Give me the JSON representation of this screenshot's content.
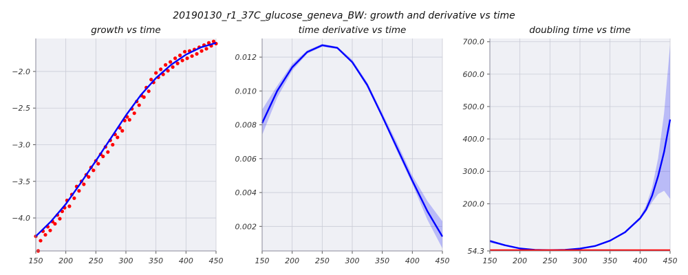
{
  "figure": {
    "suptitle": "20190130_r1_37C_glucose_geneva_BW: growth and derivative vs time",
    "background": "#ffffff",
    "panel_background": "#eff0f5",
    "grid_color": "#c9cbd6"
  },
  "chart_data": [
    {
      "type": "scatter",
      "title": "growth vs time",
      "xlabel": "",
      "ylabel": "",
      "xlim": [
        150,
        450
      ],
      "ylim": [
        -4.45,
        -1.55
      ],
      "xticks": [
        150,
        200,
        250,
        300,
        350,
        400,
        450
      ],
      "yticks": [
        -4.0,
        -3.5,
        -3.0,
        -2.5,
        -2.0
      ],
      "xtick_labels": [
        "150",
        "200",
        "250",
        "300",
        "350",
        "400",
        "450"
      ],
      "ytick_labels": [
        "−4.0",
        "−3.5",
        "−3.0",
        "−2.5",
        "−2.0"
      ],
      "grid": true,
      "series": [
        {
          "kind": "scatter",
          "color": "#ff0000",
          "points": [
            [
              150,
              -4.25
            ],
            [
              154,
              -4.45
            ],
            [
              158,
              -4.31
            ],
            [
              162,
              -4.18
            ],
            [
              166,
              -4.23
            ],
            [
              170,
              -4.12
            ],
            [
              174,
              -4.17
            ],
            [
              178,
              -4.05
            ],
            [
              182,
              -4.08
            ],
            [
              186,
              -3.96
            ],
            [
              190,
              -4.01
            ],
            [
              194,
              -3.91
            ],
            [
              198,
              -3.86
            ],
            [
              202,
              -3.76
            ],
            [
              206,
              -3.84
            ],
            [
              210,
              -3.68
            ],
            [
              214,
              -3.73
            ],
            [
              218,
              -3.57
            ],
            [
              222,
              -3.63
            ],
            [
              226,
              -3.5
            ],
            [
              230,
              -3.54
            ],
            [
              234,
              -3.41
            ],
            [
              238,
              -3.44
            ],
            [
              242,
              -3.31
            ],
            [
              246,
              -3.35
            ],
            [
              250,
              -3.22
            ],
            [
              254,
              -3.26
            ],
            [
              258,
              -3.13
            ],
            [
              262,
              -3.16
            ],
            [
              266,
              -3.03
            ],
            [
              270,
              -3.1
            ],
            [
              274,
              -2.94
            ],
            [
              278,
              -3.0
            ],
            [
              282,
              -2.86
            ],
            [
              286,
              -2.9
            ],
            [
              290,
              -2.77
            ],
            [
              294,
              -2.81
            ],
            [
              298,
              -2.67
            ],
            [
              302,
              -2.62
            ],
            [
              306,
              -2.66
            ],
            [
              310,
              -2.51
            ],
            [
              314,
              -2.57
            ],
            [
              318,
              -2.41
            ],
            [
              322,
              -2.46
            ],
            [
              326,
              -2.33
            ],
            [
              330,
              -2.35
            ],
            [
              334,
              -2.22
            ],
            [
              338,
              -2.27
            ],
            [
              342,
              -2.11
            ],
            [
              346,
              -2.15
            ],
            [
              350,
              -2.02
            ],
            [
              354,
              -2.08
            ],
            [
              358,
              -1.97
            ],
            [
              362,
              -2.04
            ],
            [
              366,
              -1.91
            ],
            [
              370,
              -1.99
            ],
            [
              374,
              -1.87
            ],
            [
              378,
              -1.94
            ],
            [
              382,
              -1.82
            ],
            [
              386,
              -1.89
            ],
            [
              390,
              -1.78
            ],
            [
              394,
              -1.85
            ],
            [
              398,
              -1.73
            ],
            [
              402,
              -1.82
            ],
            [
              406,
              -1.72
            ],
            [
              410,
              -1.79
            ],
            [
              414,
              -1.7
            ],
            [
              418,
              -1.76
            ],
            [
              422,
              -1.67
            ],
            [
              426,
              -1.72
            ],
            [
              430,
              -1.64
            ],
            [
              434,
              -1.69
            ],
            [
              438,
              -1.61
            ],
            [
              442,
              -1.65
            ],
            [
              446,
              -1.59
            ],
            [
              450,
              -1.62
            ]
          ]
        },
        {
          "kind": "line",
          "color": "#0000ff",
          "points": [
            [
              150,
              -4.25
            ],
            [
              175,
              -4.05
            ],
            [
              200,
              -3.81
            ],
            [
              225,
              -3.52
            ],
            [
              250,
              -3.22
            ],
            [
              275,
              -2.91
            ],
            [
              300,
              -2.6
            ],
            [
              325,
              -2.32
            ],
            [
              350,
              -2.09
            ],
            [
              375,
              -1.91
            ],
            [
              400,
              -1.77
            ],
            [
              425,
              -1.67
            ],
            [
              450,
              -1.61
            ]
          ]
        }
      ]
    },
    {
      "type": "line",
      "title": "time derivative vs time",
      "xlabel": "",
      "ylabel": "",
      "xlim": [
        150,
        450
      ],
      "ylim": [
        0.00055,
        0.0131
      ],
      "xticks": [
        150,
        200,
        250,
        300,
        350,
        400,
        450
      ],
      "yticks": [
        0.002,
        0.004,
        0.006,
        0.008,
        0.01,
        0.012
      ],
      "xtick_labels": [
        "150",
        "200",
        "250",
        "300",
        "350",
        "400",
        "450"
      ],
      "ytick_labels": [
        "0.002",
        "0.004",
        "0.006",
        "0.008",
        "0.010",
        "0.012"
      ],
      "grid": true,
      "series": [
        {
          "kind": "band",
          "color": "#0000ff",
          "opacity": 0.22,
          "x": [
            150,
            175,
            200,
            225,
            250,
            275,
            300,
            325,
            350,
            375,
            400,
            425,
            450
          ],
          "upper": [
            0.0089,
            0.0103,
            0.0116,
            0.0124,
            0.01278,
            0.01262,
            0.01185,
            0.0105,
            0.0087,
            0.0069,
            0.005,
            0.0035,
            0.0023
          ],
          "lower": [
            0.0074,
            0.0096,
            0.0112,
            0.0122,
            0.01262,
            0.01248,
            0.01165,
            0.0102,
            0.0084,
            0.0064,
            0.0045,
            0.0024,
            0.0007
          ]
        },
        {
          "kind": "line",
          "color": "#0000ff",
          "x": [
            150,
            175,
            200,
            225,
            250,
            275,
            300,
            325,
            350,
            375,
            400,
            425,
            450
          ],
          "y": [
            0.0081,
            0.01,
            0.0114,
            0.0123,
            0.0127,
            0.01255,
            0.0117,
            0.01035,
            0.0085,
            0.0066,
            0.0047,
            0.0029,
            0.0014
          ]
        }
      ]
    },
    {
      "type": "line",
      "title": "doubling time vs time",
      "xlabel": "",
      "ylabel": "",
      "xlim": [
        150,
        450
      ],
      "ylim": [
        54.3,
        710
      ],
      "xticks": [
        150,
        200,
        250,
        300,
        350,
        400,
        450
      ],
      "yticks": [
        54.3,
        200.0,
        300.0,
        400.0,
        500.0,
        600.0,
        700.0
      ],
      "xtick_labels": [
        "150",
        "200",
        "250",
        "300",
        "350",
        "400",
        "450"
      ],
      "ytick_labels": [
        "54.3",
        "200.0",
        "300.0",
        "400.0",
        "500.0",
        "600.0",
        "700.0"
      ],
      "grid": true,
      "series": [
        {
          "kind": "band",
          "color": "#0000ff",
          "opacity": 0.22,
          "x": [
            150,
            175,
            200,
            225,
            250,
            275,
            300,
            325,
            350,
            375,
            400,
            410,
            420,
            430,
            440,
            450
          ],
          "upper": [
            89,
            74,
            63,
            58,
            57,
            58,
            62,
            70,
            87,
            115,
            160,
            195,
            250,
            340,
            480,
            690
          ],
          "lower": [
            80,
            70,
            61,
            57,
            56,
            57,
            61,
            69,
            85,
            110,
            150,
            175,
            205,
            230,
            240,
            215
          ]
        },
        {
          "kind": "line",
          "color": "#0000ff",
          "x": [
            150,
            175,
            200,
            225,
            250,
            275,
            300,
            325,
            350,
            375,
            400,
            410,
            420,
            430,
            440,
            450
          ],
          "y": [
            85,
            72,
            62,
            57.5,
            56.5,
            57.5,
            61.5,
            69.5,
            86,
            112,
            155,
            182,
            225,
            285,
            360,
            460
          ]
        },
        {
          "kind": "hline",
          "color": "#ff0000",
          "y": 54.3
        }
      ]
    }
  ]
}
